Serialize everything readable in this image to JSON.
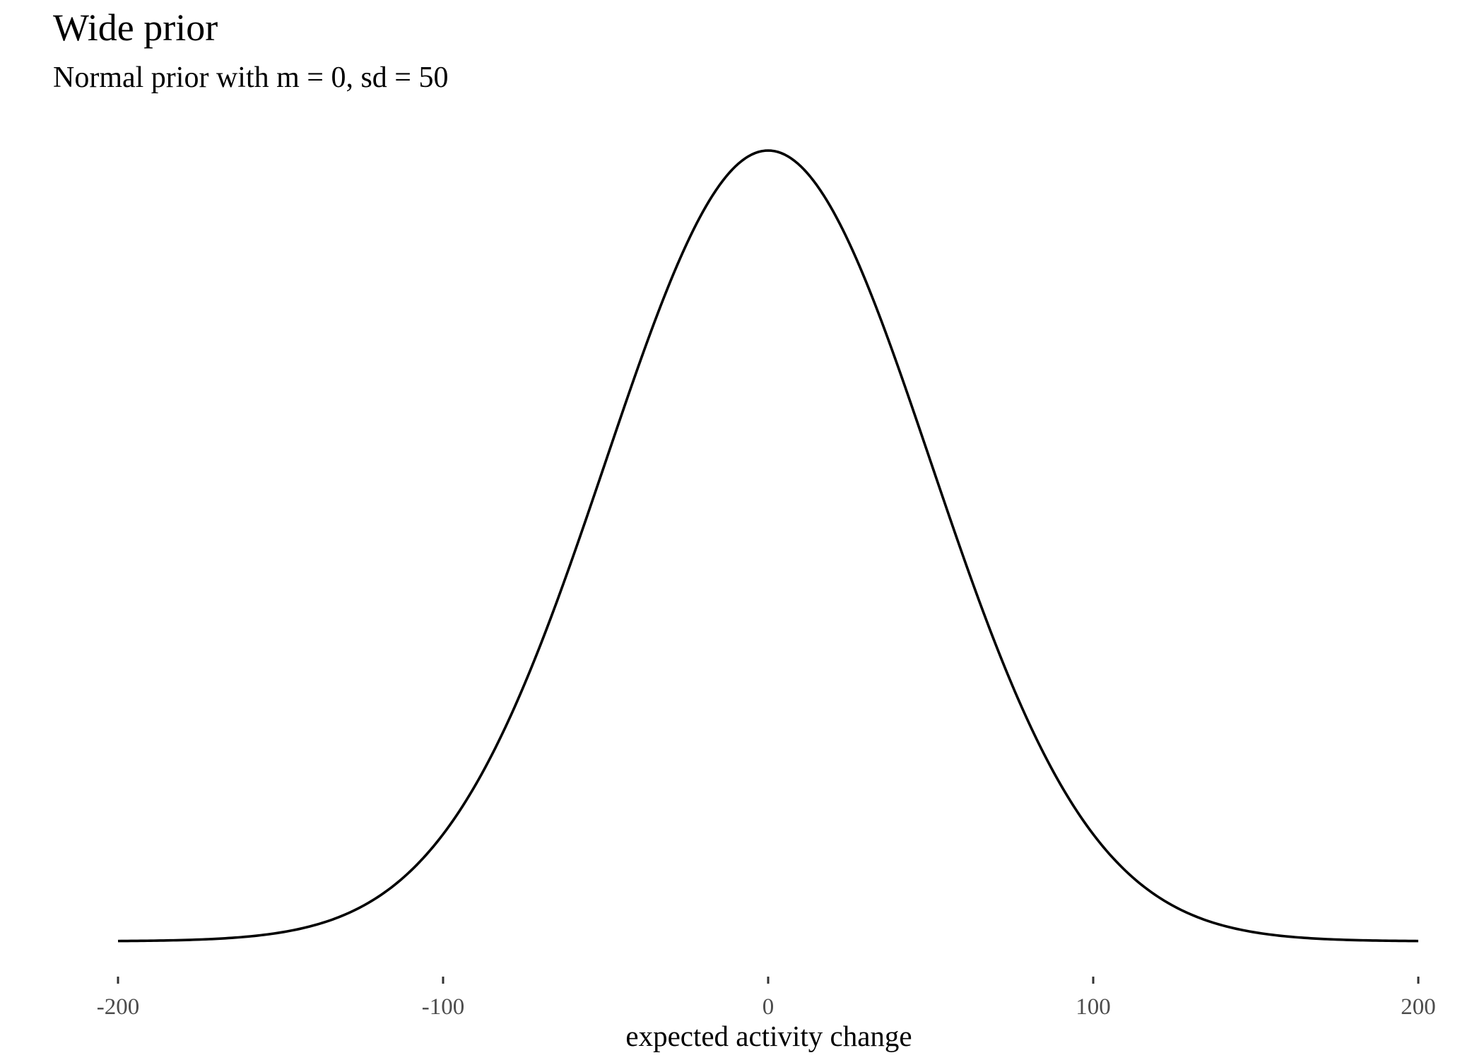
{
  "chart_data": {
    "type": "line",
    "title": "Wide prior",
    "subtitle": "Normal prior with m = 0, sd = 50",
    "xlabel": "expected activity change",
    "ylabel": "",
    "distribution": "normal",
    "mean": 0,
    "sd": 50,
    "xlim": [
      -200,
      200
    ],
    "x_ticks": [
      -200,
      -100,
      0,
      100,
      200
    ],
    "x_tick_labels": [
      "-200",
      "-100",
      "0",
      "100",
      "200"
    ],
    "y_axis_shown": false,
    "grid": false,
    "legend": "none",
    "line_color": "#000000"
  }
}
